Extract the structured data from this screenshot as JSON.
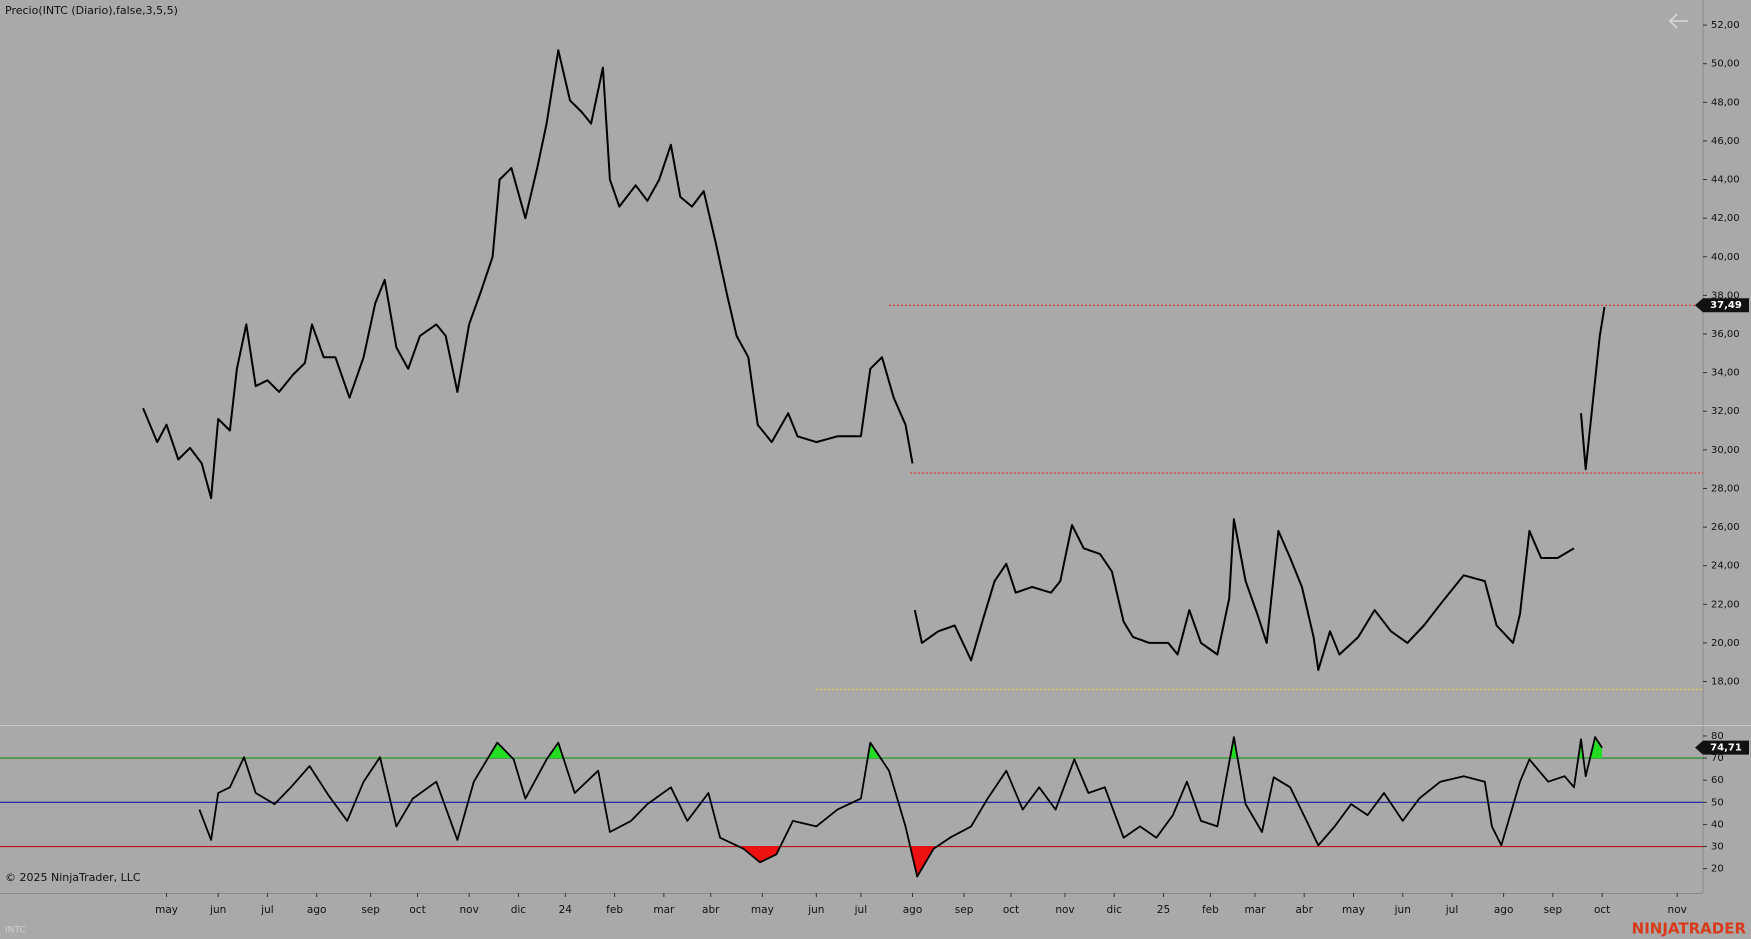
{
  "chart_data": [
    {
      "type": "line",
      "title": "Precio(INTC (Diario),false,3,5,5)",
      "symbol": "INTC",
      "color": "#000000",
      "xlim": [
        0,
        726
      ],
      "ylim": [
        15.8,
        53.3
      ],
      "yticks": [
        {
          "value": 18,
          "label": "18,00"
        },
        {
          "value": 20,
          "label": "20,00"
        },
        {
          "value": 22,
          "label": "22,00"
        },
        {
          "value": 24,
          "label": "24,00"
        },
        {
          "value": 26,
          "label": "26,00"
        },
        {
          "value": 28,
          "label": "28,00"
        },
        {
          "value": 30,
          "label": "30,00"
        },
        {
          "value": 32,
          "label": "32,00"
        },
        {
          "value": 34,
          "label": "34,00"
        },
        {
          "value": 36,
          "label": "36,00"
        },
        {
          "value": 38,
          "label": "38,00"
        },
        {
          "value": 40,
          "label": "40,00"
        },
        {
          "value": 42,
          "label": "42,00"
        },
        {
          "value": 44,
          "label": "44,00"
        },
        {
          "value": 46,
          "label": "46,00"
        },
        {
          "value": 48,
          "label": "48,00"
        },
        {
          "value": 50,
          "label": "50,00"
        },
        {
          "value": 52,
          "label": "52,00"
        }
      ],
      "x": [
        61,
        67,
        71,
        76,
        81,
        86,
        90,
        93,
        98,
        101,
        105,
        109,
        114,
        119,
        125,
        130,
        133,
        138,
        143,
        149,
        155,
        160,
        164,
        169,
        174,
        179,
        186,
        190,
        195,
        200,
        205,
        210,
        213,
        218,
        224,
        229,
        233,
        238,
        243,
        248,
        252,
        257,
        260,
        264,
        271,
        276,
        281,
        286,
        290,
        295,
        300,
        305,
        310,
        314,
        319,
        323,
        329,
        336,
        340,
        348,
        357,
        367,
        371,
        376,
        381,
        386,
        389,
        389.5,
        390,
        393,
        400,
        407,
        414,
        419,
        424,
        429,
        433,
        440,
        448,
        452,
        457,
        462,
        469,
        474,
        479,
        483,
        490,
        498,
        502,
        507,
        512,
        519,
        524,
        526,
        531,
        536,
        540,
        545,
        550,
        555,
        560,
        562,
        567,
        571,
        579,
        586,
        593,
        600,
        607,
        614,
        624,
        633,
        638,
        645,
        648,
        652,
        657,
        664,
        671,
        672.5,
        674,
        676,
        680,
        682,
        684
      ],
      "values": [
        32.15,
        30.4,
        31.3,
        29.5,
        30.1,
        29.3,
        27.5,
        31.6,
        31.0,
        34.2,
        36.5,
        33.3,
        33.6,
        33.0,
        33.9,
        34.5,
        36.5,
        34.8,
        34.8,
        32.7,
        34.8,
        37.6,
        38.8,
        35.3,
        34.2,
        35.9,
        36.5,
        35.9,
        33.0,
        36.5,
        38.2,
        40.0,
        44.0,
        44.6,
        42.0,
        44.6,
        46.9,
        50.7,
        48.1,
        47.5,
        46.9,
        49.8,
        44.0,
        42.6,
        43.7,
        42.9,
        44.0,
        45.8,
        43.1,
        42.6,
        43.4,
        40.8,
        38.0,
        35.9,
        34.8,
        31.3,
        30.4,
        31.9,
        30.7,
        30.4,
        30.7,
        30.7,
        34.2,
        34.8,
        32.7,
        31.3,
        29.3,
        null,
        21.7,
        20.0,
        20.6,
        20.9,
        19.1,
        21.2,
        23.2,
        24.1,
        22.6,
        22.9,
        22.6,
        23.2,
        26.1,
        24.9,
        24.6,
        23.7,
        21.1,
        20.3,
        20.0,
        20.0,
        19.4,
        21.7,
        20.0,
        19.4,
        22.3,
        26.4,
        23.2,
        21.5,
        20.0,
        25.8,
        24.4,
        22.9,
        20.3,
        18.6,
        20.6,
        19.4,
        20.3,
        21.7,
        20.6,
        20.0,
        20.9,
        22.0,
        23.5,
        23.2,
        20.9,
        20.0,
        21.5,
        25.8,
        24.4,
        24.4,
        24.9,
        null,
        31.9,
        29.0,
        33.6,
        35.9,
        37.4
      ],
      "hlines": [
        {
          "value": 37.49,
          "x_start": 379,
          "color": "#e02020"
        },
        {
          "value": 28.8,
          "x_start": 388,
          "color": "#e02020"
        },
        {
          "value": 17.6,
          "x_start": 348,
          "color": "#e8e030"
        }
      ],
      "last_label": {
        "value": 37.49,
        "label": "37,49"
      }
    },
    {
      "type": "line",
      "color": "#000000",
      "copyright": "© 2025 NinjaTrader, LLC",
      "brand": "NINJATRADER",
      "xlim": [
        0,
        726
      ],
      "ylim": [
        9,
        84.5
      ],
      "yticks": [
        20,
        30,
        40,
        50,
        60,
        70,
        80
      ],
      "xticks": [
        {
          "value": 71,
          "label": "may"
        },
        {
          "value": 93,
          "label": "jun"
        },
        {
          "value": 114,
          "label": "jul"
        },
        {
          "value": 135,
          "label": "ago"
        },
        {
          "value": 158,
          "label": "sep"
        },
        {
          "value": 178,
          "label": "oct"
        },
        {
          "value": 200,
          "label": "nov"
        },
        {
          "value": 221,
          "label": "dic"
        },
        {
          "value": 241,
          "label": "24"
        },
        {
          "value": 262,
          "label": "feb"
        },
        {
          "value": 283,
          "label": "mar"
        },
        {
          "value": 303,
          "label": "abr"
        },
        {
          "value": 325,
          "label": "may"
        },
        {
          "value": 348,
          "label": "jun"
        },
        {
          "value": 367,
          "label": "jul"
        },
        {
          "value": 389,
          "label": "ago"
        },
        {
          "value": 411,
          "label": "sep"
        },
        {
          "value": 431,
          "label": "oct"
        },
        {
          "value": 454,
          "label": "nov"
        },
        {
          "value": 475,
          "label": "dic"
        },
        {
          "value": 496,
          "label": "25"
        },
        {
          "value": 516,
          "label": "feb"
        },
        {
          "value": 535,
          "label": "mar"
        },
        {
          "value": 556,
          "label": "abr"
        },
        {
          "value": 577,
          "label": "may"
        },
        {
          "value": 598,
          "label": "jun"
        },
        {
          "value": 619,
          "label": "jul"
        },
        {
          "value": 641,
          "label": "ago"
        },
        {
          "value": 662,
          "label": "sep"
        },
        {
          "value": 683,
          "label": "oct"
        },
        {
          "value": 715,
          "label": "nov"
        }
      ],
      "levels": [
        {
          "value": 70,
          "color": "#1a8a1a"
        },
        {
          "value": 50,
          "color": "#1a1aa0"
        },
        {
          "value": 30,
          "color": "#c01010"
        }
      ],
      "overbought_color": "#22dd22",
      "oversold_color": "#ee1111",
      "x": [
        85,
        90,
        93,
        98,
        104,
        109,
        117,
        124,
        132,
        140,
        148,
        155,
        162,
        169,
        176,
        186,
        195,
        202,
        212,
        219,
        224,
        233,
        238,
        245,
        255,
        260,
        269,
        276,
        286,
        293,
        302,
        307,
        317,
        324,
        331,
        338,
        348,
        357,
        367,
        371,
        379,
        386,
        391,
        398,
        405,
        414,
        421,
        429,
        436,
        443,
        450,
        458,
        464,
        471,
        479,
        486,
        493,
        500,
        506,
        512,
        519,
        526,
        531,
        538,
        543,
        550,
        557,
        562,
        569,
        576,
        583,
        590,
        598,
        605,
        614,
        624,
        633,
        636,
        640,
        648,
        652,
        660,
        667,
        671,
        674,
        676,
        680,
        683
      ],
      "values": [
        46.7,
        33.0,
        54.2,
        56.8,
        70.4,
        54.2,
        49.2,
        56.8,
        66.4,
        53.2,
        41.6,
        59.3,
        70.4,
        39.1,
        51.7,
        59.3,
        33.0,
        59.3,
        77.0,
        69.4,
        51.7,
        69.4,
        77.0,
        54.2,
        64.3,
        36.6,
        41.6,
        49.2,
        56.8,
        41.6,
        54.2,
        34.0,
        29.0,
        22.9,
        26.5,
        41.6,
        39.1,
        46.7,
        51.7,
        77.0,
        64.3,
        39.1,
        16.4,
        29.0,
        34.0,
        39.1,
        51.7,
        64.3,
        46.7,
        56.8,
        46.7,
        69.4,
        54.2,
        56.8,
        34.0,
        39.1,
        34.0,
        44.2,
        59.3,
        41.6,
        39.1,
        79.5,
        49.2,
        36.6,
        61.3,
        56.8,
        41.6,
        30.5,
        39.1,
        49.2,
        44.2,
        54.2,
        41.6,
        51.7,
        59.3,
        61.8,
        59.3,
        39.1,
        30.5,
        59.3,
        69.4,
        59.3,
        61.8,
        56.8,
        78.5,
        61.8,
        79.5,
        74.7
      ],
      "last_label": {
        "value": 74.71,
        "label": "74,71"
      }
    }
  ]
}
